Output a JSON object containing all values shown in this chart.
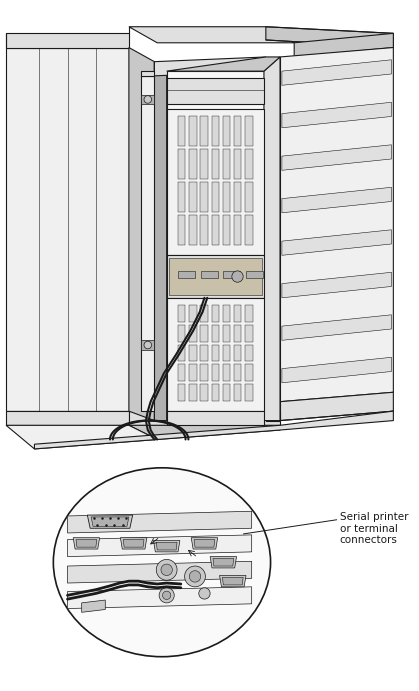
{
  "background_color": "#ffffff",
  "figure_width": 4.19,
  "figure_height": 6.91,
  "dpi": 100,
  "annotation_text": [
    "Serial printer",
    "or terminal",
    "connectors"
  ],
  "annotation_fontsize": 7.5,
  "line_color": "#1a1a1a",
  "lw_main": 0.8,
  "lw_thin": 0.4,
  "c_white": "#ffffff",
  "c_light": "#f0f0f0",
  "c_mid": "#e0e0e0",
  "c_dark": "#c8c8c8",
  "c_darker": "#b0b0b0",
  "c_grid": "#d8d8d8"
}
